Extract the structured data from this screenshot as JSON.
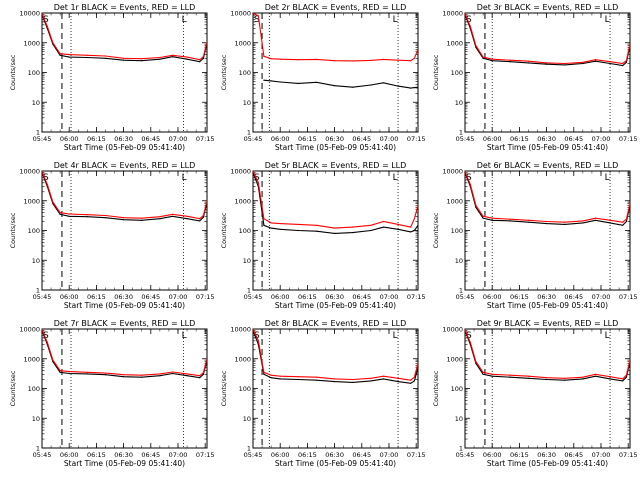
{
  "figure": {
    "background": "#ffffff",
    "colors": {
      "events": "#000000",
      "lld": "#ff0000",
      "axis": "#000000"
    }
  },
  "chart_data": [
    {
      "type": "line",
      "title": "Det 1r BLACK = Events, RED = LLD",
      "xlabel": "Start Time (05-Feb-09 05:41:40)",
      "ylabel": "Counts/sec",
      "y_scale": "log",
      "ylim": [
        1,
        10000
      ],
      "xlim": [
        "05:45",
        "07:16"
      ],
      "x_ticks": [
        "05:45",
        "06:00",
        "06:15",
        "06:30",
        "06:45",
        "07:00",
        "07:15"
      ],
      "y_ticks": [
        "1",
        "10",
        "100",
        "1000",
        "10000"
      ],
      "corner_marks": [
        "S",
        "L"
      ],
      "vlines": [
        {
          "x": "05:56",
          "style": "dashed"
        },
        {
          "x": "06:01",
          "style": "dotted"
        },
        {
          "x": "07:03",
          "style": "dotted"
        }
      ],
      "x": [
        "05:45",
        "05:48",
        "05:51",
        "05:55",
        "06:00",
        "06:10",
        "06:20",
        "06:30",
        "06:40",
        "06:50",
        "06:57",
        "07:05",
        "07:12",
        "07:14",
        "07:16"
      ],
      "series": [
        {
          "name": "Events",
          "color": "#000000",
          "values": [
            9000,
            3000,
            900,
            380,
            330,
            320,
            300,
            260,
            250,
            280,
            340,
            280,
            230,
            300,
            1000
          ]
        },
        {
          "name": "LLD",
          "color": "#ff0000",
          "values": [
            9500,
            3500,
            1000,
            430,
            400,
            380,
            360,
            300,
            290,
            320,
            380,
            330,
            270,
            340,
            1100
          ]
        }
      ]
    },
    {
      "type": "line",
      "title": "Det 2r BLACK = Events, RED = LLD",
      "xlabel": "Start Time (05-Feb-09 05:41:40)",
      "ylabel": "Counts/sec",
      "y_scale": "log",
      "ylim": [
        1,
        10000
      ],
      "xlim": [
        "05:45",
        "07:16"
      ],
      "x_ticks": [
        "05:45",
        "06:00",
        "06:15",
        "06:30",
        "06:45",
        "07:00",
        "07:15"
      ],
      "y_ticks": [
        "1",
        "10",
        "100",
        "1000",
        "10000"
      ],
      "corner_marks": [
        "S",
        "L"
      ],
      "vlines": [
        {
          "x": "05:50",
          "style": "dashed"
        },
        {
          "x": "05:54",
          "style": "dotted"
        },
        {
          "x": "07:05",
          "style": "dotted"
        }
      ],
      "x": [
        "05:45",
        "05:48",
        "05:51",
        "05:55",
        "06:00",
        "06:10",
        "06:20",
        "06:30",
        "06:40",
        "06:50",
        "06:57",
        "07:05",
        "07:12",
        "07:14",
        "07:16"
      ],
      "series": [
        {
          "name": "Events",
          "color": "#000000",
          "values": [
            null,
            null,
            55,
            52,
            48,
            43,
            47,
            36,
            32,
            38,
            45,
            35,
            30,
            31,
            32
          ]
        },
        {
          "name": "LLD",
          "color": "#ff0000",
          "values": [
            10000,
            8000,
            350,
            290,
            280,
            270,
            275,
            250,
            245,
            255,
            275,
            260,
            250,
            300,
            600
          ]
        }
      ]
    },
    {
      "type": "line",
      "title": "Det 3r BLACK = Events, RED = LLD",
      "xlabel": "Start Time (05-Feb-09 05:41:40)",
      "ylabel": "Counts/sec",
      "y_scale": "log",
      "ylim": [
        1,
        10000
      ],
      "xlim": [
        "05:45",
        "07:16"
      ],
      "x_ticks": [
        "05:45",
        "06:00",
        "06:15",
        "06:30",
        "06:45",
        "07:00",
        "07:15"
      ],
      "y_ticks": [
        "1",
        "10",
        "100",
        "1000",
        "10000"
      ],
      "corner_marks": [
        "S",
        "L"
      ],
      "vlines": [
        {
          "x": "05:56",
          "style": "dashed"
        },
        {
          "x": "06:00",
          "style": "dotted"
        },
        {
          "x": "07:05",
          "style": "dotted"
        }
      ],
      "x": [
        "05:45",
        "05:48",
        "05:51",
        "05:55",
        "06:00",
        "06:10",
        "06:20",
        "06:30",
        "06:40",
        "06:50",
        "06:57",
        "07:05",
        "07:12",
        "07:14",
        "07:16"
      ],
      "series": [
        {
          "name": "Events",
          "color": "#000000",
          "values": [
            9000,
            3000,
            700,
            300,
            250,
            230,
            210,
            190,
            180,
            200,
            240,
            200,
            170,
            220,
            800
          ]
        },
        {
          "name": "LLD",
          "color": "#ff0000",
          "values": [
            9500,
            3500,
            800,
            330,
            280,
            260,
            240,
            210,
            200,
            220,
            270,
            230,
            200,
            250,
            900
          ]
        }
      ]
    },
    {
      "type": "line",
      "title": "Det 4r BLACK = Events, RED = LLD",
      "xlabel": "Start Time (05-Feb-09 05:41:40)",
      "ylabel": "Counts/sec",
      "y_scale": "log",
      "ylim": [
        1,
        10000
      ],
      "xlim": [
        "05:45",
        "07:16"
      ],
      "x_ticks": [
        "05:45",
        "06:00",
        "06:15",
        "06:30",
        "06:45",
        "07:00",
        "07:15"
      ],
      "y_ticks": [
        "1",
        "10",
        "100",
        "1000",
        "10000"
      ],
      "corner_marks": [
        "S",
        "L"
      ],
      "vlines": [
        {
          "x": "05:56",
          "style": "dashed"
        },
        {
          "x": "06:01",
          "style": "dotted"
        },
        {
          "x": "07:03",
          "style": "dotted"
        }
      ],
      "x": [
        "05:45",
        "05:48",
        "05:51",
        "05:55",
        "06:00",
        "06:10",
        "06:20",
        "06:30",
        "06:40",
        "06:50",
        "06:57",
        "07:05",
        "07:12",
        "07:14",
        "07:16"
      ],
      "series": [
        {
          "name": "Events",
          "color": "#000000",
          "values": [
            9000,
            3000,
            800,
            350,
            300,
            290,
            270,
            230,
            220,
            250,
            300,
            250,
            210,
            280,
            900
          ]
        },
        {
          "name": "LLD",
          "color": "#ff0000",
          "values": [
            9500,
            3500,
            900,
            400,
            360,
            340,
            320,
            270,
            260,
            290,
            350,
            300,
            250,
            320,
            1000
          ]
        }
      ]
    },
    {
      "type": "line",
      "title": "Det 5r BLACK = Events, RED = LLD",
      "xlabel": "Start Time (05-Feb-09 05:41:40)",
      "ylabel": "Counts/sec",
      "y_scale": "log",
      "ylim": [
        1,
        10000
      ],
      "xlim": [
        "05:45",
        "07:16"
      ],
      "x_ticks": [
        "05:45",
        "06:00",
        "06:15",
        "06:30",
        "06:45",
        "07:00",
        "07:15"
      ],
      "y_ticks": [
        "1",
        "10",
        "100",
        "1000",
        "10000"
      ],
      "corner_marks": [
        "S",
        "L"
      ],
      "vlines": [
        {
          "x": "05:50",
          "style": "dashed"
        },
        {
          "x": "05:54",
          "style": "dotted"
        },
        {
          "x": "07:05",
          "style": "dotted"
        }
      ],
      "x": [
        "05:45",
        "05:48",
        "05:51",
        "05:55",
        "06:00",
        "06:10",
        "06:20",
        "06:30",
        "06:40",
        "06:50",
        "06:57",
        "07:05",
        "07:12",
        "07:14",
        "07:16"
      ],
      "series": [
        {
          "name": "Events",
          "color": "#000000",
          "values": [
            9000,
            3000,
            150,
            120,
            110,
            100,
            95,
            80,
            85,
            100,
            130,
            110,
            90,
            100,
            150
          ]
        },
        {
          "name": "LLD",
          "color": "#ff0000",
          "values": [
            10000,
            4000,
            250,
            180,
            170,
            160,
            150,
            120,
            130,
            150,
            200,
            160,
            130,
            250,
            700
          ]
        }
      ]
    },
    {
      "type": "line",
      "title": "Det 6r BLACK = Events, RED = LLD",
      "xlabel": "Start Time (05-Feb-09 05:41:40)",
      "ylabel": "Counts/sec",
      "y_scale": "log",
      "ylim": [
        1,
        10000
      ],
      "xlim": [
        "05:45",
        "07:16"
      ],
      "x_ticks": [
        "05:45",
        "06:00",
        "06:15",
        "06:30",
        "06:45",
        "07:00",
        "07:15"
      ],
      "y_ticks": [
        "1",
        "10",
        "100",
        "1000",
        "10000"
      ],
      "corner_marks": [
        "S",
        "L"
      ],
      "vlines": [
        {
          "x": "05:56",
          "style": "dashed"
        },
        {
          "x": "06:00",
          "style": "dotted"
        },
        {
          "x": "07:05",
          "style": "dotted"
        }
      ],
      "x": [
        "05:45",
        "05:48",
        "05:51",
        "05:55",
        "06:00",
        "06:10",
        "06:20",
        "06:30",
        "06:40",
        "06:50",
        "06:57",
        "07:05",
        "07:12",
        "07:14",
        "07:16"
      ],
      "series": [
        {
          "name": "Events",
          "color": "#000000",
          "values": [
            9000,
            3000,
            600,
            260,
            220,
            210,
            190,
            170,
            160,
            180,
            220,
            180,
            150,
            200,
            700
          ]
        },
        {
          "name": "LLD",
          "color": "#ff0000",
          "values": [
            9500,
            3500,
            700,
            300,
            260,
            240,
            220,
            200,
            190,
            210,
            260,
            220,
            190,
            240,
            800
          ]
        }
      ]
    },
    {
      "type": "line",
      "title": "Det 7r BLACK = Events, RED = LLD",
      "xlabel": "Start Time (05-Feb-09 05:41:40)",
      "ylabel": "Counts/sec",
      "y_scale": "log",
      "ylim": [
        1,
        10000
      ],
      "xlim": [
        "05:45",
        "07:16"
      ],
      "x_ticks": [
        "05:45",
        "06:00",
        "06:15",
        "06:30",
        "06:45",
        "07:00",
        "07:15"
      ],
      "y_ticks": [
        "1",
        "10",
        "100",
        "1000",
        "10000"
      ],
      "corner_marks": [
        "S",
        "L"
      ],
      "vlines": [
        {
          "x": "05:56",
          "style": "dashed"
        },
        {
          "x": "06:01",
          "style": "dotted"
        },
        {
          "x": "07:03",
          "style": "dotted"
        }
      ],
      "x": [
        "05:45",
        "05:48",
        "05:51",
        "05:55",
        "06:00",
        "06:10",
        "06:20",
        "06:30",
        "06:40",
        "06:50",
        "06:57",
        "07:05",
        "07:12",
        "07:14",
        "07:16"
      ],
      "series": [
        {
          "name": "Events",
          "color": "#000000",
          "values": [
            9000,
            3000,
            800,
            350,
            320,
            310,
            290,
            250,
            240,
            270,
            320,
            270,
            230,
            300,
            900
          ]
        },
        {
          "name": "LLD",
          "color": "#ff0000",
          "values": [
            9500,
            3500,
            900,
            400,
            370,
            350,
            330,
            290,
            280,
            310,
            360,
            310,
            270,
            340,
            1000
          ]
        }
      ]
    },
    {
      "type": "line",
      "title": "Det 8r BLACK = Events, RED = LLD",
      "xlabel": "Start Time (05-Feb-09 05:41:40)",
      "ylabel": "Counts/sec",
      "y_scale": "log",
      "ylim": [
        1,
        10000
      ],
      "xlim": [
        "05:45",
        "07:16"
      ],
      "x_ticks": [
        "05:45",
        "06:00",
        "06:15",
        "06:30",
        "06:45",
        "07:00",
        "07:15"
      ],
      "y_ticks": [
        "1",
        "10",
        "100",
        "1000",
        "10000"
      ],
      "corner_marks": [
        "S",
        "L"
      ],
      "vlines": [
        {
          "x": "05:50",
          "style": "dashed"
        },
        {
          "x": "05:54",
          "style": "dotted"
        },
        {
          "x": "07:05",
          "style": "dotted"
        }
      ],
      "x": [
        "05:45",
        "05:48",
        "05:51",
        "05:55",
        "06:00",
        "06:10",
        "06:20",
        "06:30",
        "06:40",
        "06:50",
        "06:57",
        "07:05",
        "07:12",
        "07:14",
        "07:16"
      ],
      "series": [
        {
          "name": "Events",
          "color": "#000000",
          "values": [
            9000,
            3000,
            300,
            230,
            210,
            200,
            190,
            170,
            160,
            180,
            210,
            170,
            150,
            180,
            500
          ]
        },
        {
          "name": "LLD",
          "color": "#ff0000",
          "values": [
            10000,
            4000,
            350,
            280,
            260,
            250,
            240,
            210,
            200,
            220,
            260,
            220,
            190,
            240,
            700
          ]
        }
      ]
    },
    {
      "type": "line",
      "title": "Det 9r BLACK = Events, RED = LLD",
      "xlabel": "Start Time (05-Feb-09 05:41:40)",
      "ylabel": "Counts/sec",
      "y_scale": "log",
      "ylim": [
        1,
        10000
      ],
      "xlim": [
        "05:45",
        "07:16"
      ],
      "x_ticks": [
        "05:45",
        "06:00",
        "06:15",
        "06:30",
        "06:45",
        "07:00",
        "07:15"
      ],
      "y_ticks": [
        "1",
        "10",
        "100",
        "1000",
        "10000"
      ],
      "corner_marks": [
        "S",
        "L"
      ],
      "vlines": [
        {
          "x": "05:56",
          "style": "dashed"
        },
        {
          "x": "06:00",
          "style": "dotted"
        },
        {
          "x": "07:05",
          "style": "dotted"
        }
      ],
      "x": [
        "05:45",
        "05:48",
        "05:51",
        "05:55",
        "06:00",
        "06:10",
        "06:20",
        "06:30",
        "06:40",
        "06:50",
        "06:57",
        "07:05",
        "07:12",
        "07:14",
        "07:16"
      ],
      "series": [
        {
          "name": "Events",
          "color": "#000000",
          "values": [
            9000,
            3000,
            700,
            300,
            260,
            240,
            220,
            200,
            190,
            210,
            260,
            210,
            180,
            240,
            800
          ]
        },
        {
          "name": "LLD",
          "color": "#ff0000",
          "values": [
            9500,
            3500,
            800,
            350,
            300,
            280,
            260,
            230,
            220,
            240,
            300,
            250,
            210,
            280,
            900
          ]
        }
      ]
    }
  ]
}
